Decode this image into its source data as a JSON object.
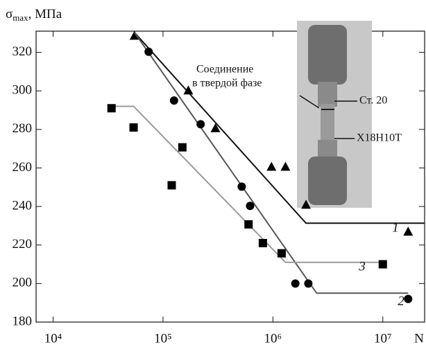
{
  "chart_data": {
    "type": "scatter",
    "y_label": {
      "symbol": "σ",
      "subscript": "max",
      "unit": ", МПа"
    },
    "x_label": "N",
    "log_x": true,
    "xlim": [
      7000,
      24000000
    ],
    "xticks": [
      {
        "value": 10000,
        "label": "10⁴"
      },
      {
        "value": 100000,
        "label": "10⁵"
      },
      {
        "value": 1000000,
        "label": "10⁶"
      },
      {
        "value": 10000000,
        "label": "10⁷"
      }
    ],
    "ylim": [
      180,
      331
    ],
    "yticks": [
      180,
      200,
      220,
      240,
      260,
      280,
      300,
      320
    ],
    "series": [
      {
        "name": "1",
        "marker": "triangle",
        "color": "#000000",
        "line_color": "#111111",
        "x": [
          55000,
          170000,
          300000,
          970000,
          1300000,
          2000000,
          17000000
        ],
        "values": [
          328.7,
          300.3,
          280.7,
          260.7,
          260.7,
          241,
          227
        ],
        "fit_x": [
          55000,
          2000000,
          24000000
        ],
        "fit_y": [
          330.3,
          231.3,
          231.3
        ]
      },
      {
        "name": "2",
        "marker": "circle",
        "color": "#000000",
        "line_color": "#555555",
        "x": [
          74000,
          126000,
          220000,
          520000,
          620000,
          1600000,
          2100000,
          17000000
        ],
        "values": [
          320.3,
          295,
          282.7,
          250.3,
          240.3,
          200,
          200,
          192
        ],
        "fit_x": [
          55000,
          2500000,
          17000000
        ],
        "fit_y": [
          330.3,
          195,
          195
        ]
      },
      {
        "name": "3",
        "marker": "square",
        "color": "#000000",
        "line_color": "#999999",
        "x": [
          34000,
          54000,
          150000,
          120000,
          600000,
          810000,
          1200000,
          10000000
        ],
        "values": [
          291,
          281,
          270.7,
          251,
          230.7,
          221,
          215.7,
          210
        ],
        "fit_x": [
          34000,
          54000,
          1300000,
          10000000
        ],
        "fit_y": [
          292,
          292,
          211,
          211
        ]
      }
    ],
    "annotations": [
      "Соединение",
      "в твердой фазе",
      "Ст. 20",
      "Х18Н10Т"
    ]
  }
}
